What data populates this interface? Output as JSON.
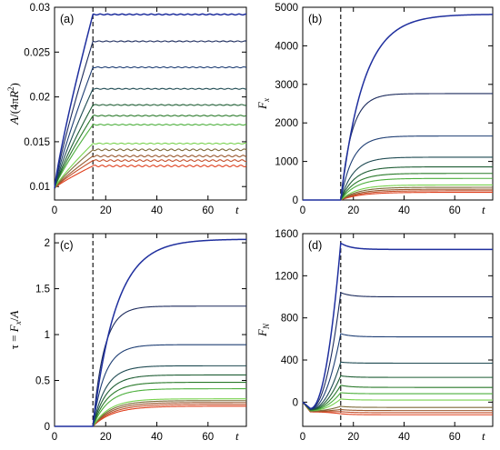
{
  "chart_data": [
    {
      "panel_label": "(a)",
      "type": "line",
      "xlabel": "t",
      "ylabel": "A/(4πR²)",
      "xlim": [
        0,
        75
      ],
      "ylim": [
        0.0085,
        0.03
      ],
      "xticks": [
        0,
        20,
        40,
        60
      ],
      "yticks": [
        0.01,
        0.015,
        0.02,
        0.025,
        0.03
      ],
      "ytick_labels": [
        "0.01",
        "0.015",
        "0.02",
        "0.025",
        "0.03"
      ],
      "dashed_line_x": 15,
      "series_final_values": [
        0.0292,
        0.0262,
        0.0233,
        0.0209,
        0.0191,
        0.0179,
        0.0169,
        0.0148,
        0.0141,
        0.0134,
        0.0129,
        0.0123
      ]
    },
    {
      "panel_label": "(b)",
      "type": "line",
      "xlabel": "t",
      "ylabel": "Fx",
      "xlim": [
        0,
        75
      ],
      "ylim": [
        0,
        5000
      ],
      "xticks": [
        0,
        20,
        40,
        60
      ],
      "yticks": [
        0,
        1000,
        2000,
        3000,
        4000,
        5000
      ],
      "ytick_labels": [
        "0",
        "1000",
        "2000",
        "3000",
        "4000",
        "5000"
      ],
      "dashed_line_x": 15,
      "series_final_values": [
        4820,
        2760,
        1660,
        1110,
        860,
        690,
        560,
        390,
        330,
        280,
        240,
        200
      ]
    },
    {
      "panel_label": "(c)",
      "type": "line",
      "xlabel": "t",
      "ylabel": "τ = Fx/A",
      "xlim": [
        0,
        75
      ],
      "ylim": [
        0,
        2.1
      ],
      "xticks": [
        0,
        20,
        40,
        60
      ],
      "yticks": [
        0,
        0.5,
        1,
        1.5,
        2
      ],
      "ytick_labels": [
        "0",
        "0.5",
        "1",
        "1.5",
        "2"
      ],
      "dashed_line_x": 15,
      "series_final_values": [
        2.04,
        1.31,
        0.89,
        0.66,
        0.56,
        0.48,
        0.41,
        0.3,
        0.28,
        0.26,
        0.24,
        0.22
      ]
    },
    {
      "panel_label": "(d)",
      "type": "line",
      "xlabel": "t",
      "ylabel": "FN",
      "xlim": [
        0,
        75
      ],
      "ylim": [
        -230,
        1600
      ],
      "xticks": [
        0,
        20,
        40,
        60
      ],
      "yticks": [
        0,
        400,
        800,
        1200,
        1600
      ],
      "ytick_labels": [
        "0",
        "400",
        "800",
        "1200",
        "1600"
      ],
      "dashed_line_x": 15,
      "series_peak_values": [
        1510,
        1040,
        650,
        380,
        250,
        160,
        90,
        30,
        -40,
        -70,
        -90,
        -110
      ],
      "series_final_values": [
        1450,
        1000,
        620,
        370,
        235,
        140,
        80,
        20,
        -50,
        -80,
        -100,
        -120
      ]
    }
  ],
  "series_colors": [
    "#1f2f9e",
    "#1b2a5c",
    "#1e3e74",
    "#1e4a52",
    "#1f5e34",
    "#2a7a2a",
    "#4caf3c",
    "#78d24e",
    "#7e6a3a",
    "#9a5a30",
    "#c4502c",
    "#e0401e"
  ]
}
